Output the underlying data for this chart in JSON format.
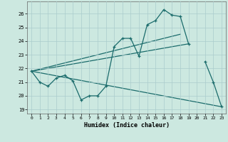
{
  "xlabel": "Humidex (Indice chaleur)",
  "bg_color": "#cce8e0",
  "grid_color": "#aacccc",
  "line_color": "#1a6b6b",
  "xlim": [
    -0.5,
    23.5
  ],
  "ylim": [
    18.7,
    26.9
  ],
  "yticks": [
    19,
    20,
    21,
    22,
    23,
    24,
    25,
    26
  ],
  "xticks": [
    0,
    1,
    2,
    3,
    4,
    5,
    6,
    7,
    8,
    9,
    10,
    11,
    12,
    13,
    14,
    15,
    16,
    17,
    18,
    19,
    20,
    21,
    22,
    23
  ],
  "main_x": [
    0,
    1,
    2,
    3,
    4,
    5,
    6,
    7,
    8,
    9,
    10,
    11,
    12,
    13,
    14,
    15,
    16,
    17,
    18,
    19,
    21,
    22,
    23
  ],
  "main_y": [
    21.8,
    21.0,
    20.7,
    21.3,
    21.5,
    21.1,
    19.7,
    20.0,
    20.0,
    20.7,
    23.6,
    24.2,
    24.2,
    22.9,
    25.2,
    25.5,
    26.3,
    25.9,
    25.8,
    23.8,
    22.5,
    21.0,
    19.2
  ],
  "line1_x": [
    0,
    19
  ],
  "line1_y": [
    21.8,
    23.8
  ],
  "line2_x": [
    0,
    18
  ],
  "line2_y": [
    21.8,
    24.5
  ],
  "line3_x": [
    0,
    23
  ],
  "line3_y": [
    21.8,
    19.2
  ]
}
